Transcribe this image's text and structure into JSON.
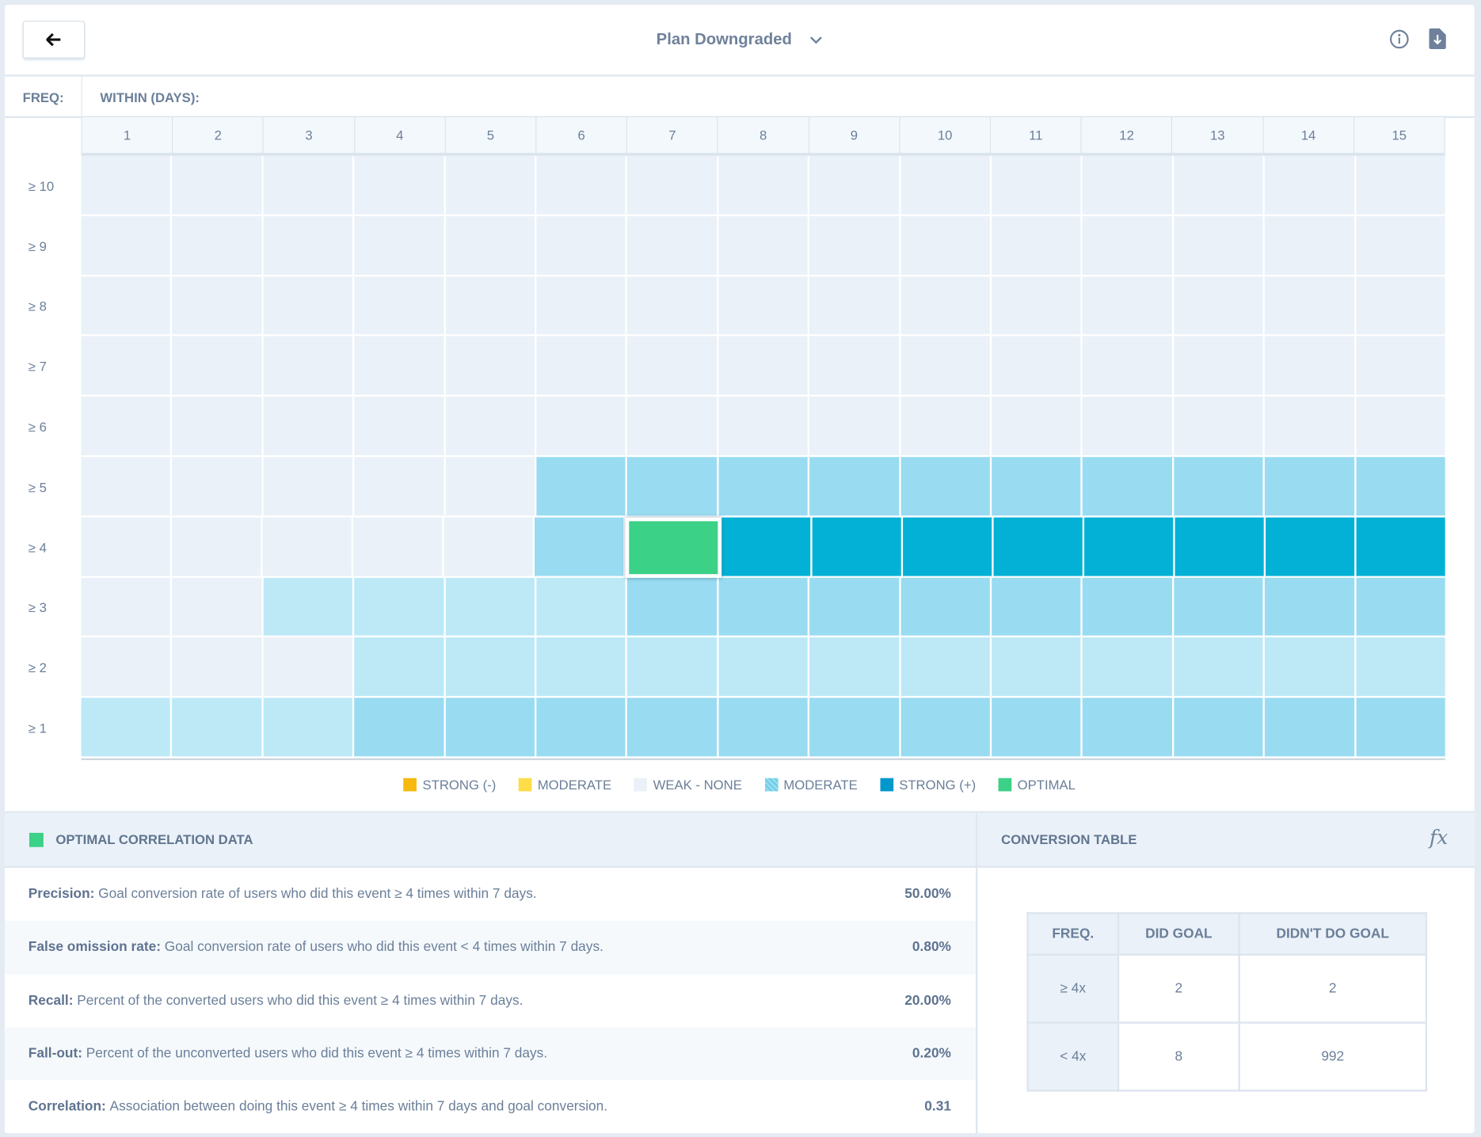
{
  "header": {
    "title": "Plan Downgraded",
    "back_icon": "arrow-left-icon",
    "info_icon": "info-icon",
    "download_icon": "download-file-icon"
  },
  "labels": {
    "freq": "FREQ:",
    "within": "WITHIN (DAYS):"
  },
  "colors": {
    "weak_none": "#eaf1f8",
    "light": "#bde9f7",
    "moderate": "#99dcf1",
    "strong": "#03b1d6",
    "optimal": "#3bd186",
    "strong_neg": "#f7b90f",
    "moderate_neg": "#fedd48"
  },
  "chart_data": {
    "type": "heatmap",
    "columns": [
      "1",
      "2",
      "3",
      "4",
      "5",
      "6",
      "7",
      "8",
      "9",
      "10",
      "11",
      "12",
      "13",
      "14",
      "15"
    ],
    "rows": [
      "≥ 10",
      "≥ 9",
      "≥ 8",
      "≥ 7",
      "≥ 6",
      "≥ 5",
      "≥ 4",
      "≥ 3",
      "≥ 2",
      "≥ 1"
    ],
    "levels": [
      [
        "weak_none",
        "weak_none",
        "weak_none",
        "weak_none",
        "weak_none",
        "weak_none",
        "weak_none",
        "weak_none",
        "weak_none",
        "weak_none",
        "weak_none",
        "weak_none",
        "weak_none",
        "weak_none",
        "weak_none"
      ],
      [
        "weak_none",
        "weak_none",
        "weak_none",
        "weak_none",
        "weak_none",
        "weak_none",
        "weak_none",
        "weak_none",
        "weak_none",
        "weak_none",
        "weak_none",
        "weak_none",
        "weak_none",
        "weak_none",
        "weak_none"
      ],
      [
        "weak_none",
        "weak_none",
        "weak_none",
        "weak_none",
        "weak_none",
        "weak_none",
        "weak_none",
        "weak_none",
        "weak_none",
        "weak_none",
        "weak_none",
        "weak_none",
        "weak_none",
        "weak_none",
        "weak_none"
      ],
      [
        "weak_none",
        "weak_none",
        "weak_none",
        "weak_none",
        "weak_none",
        "weak_none",
        "weak_none",
        "weak_none",
        "weak_none",
        "weak_none",
        "weak_none",
        "weak_none",
        "weak_none",
        "weak_none",
        "weak_none"
      ],
      [
        "weak_none",
        "weak_none",
        "weak_none",
        "weak_none",
        "weak_none",
        "weak_none",
        "weak_none",
        "weak_none",
        "weak_none",
        "weak_none",
        "weak_none",
        "weak_none",
        "weak_none",
        "weak_none",
        "weak_none"
      ],
      [
        "weak_none",
        "weak_none",
        "weak_none",
        "weak_none",
        "weak_none",
        "moderate",
        "moderate",
        "moderate",
        "moderate",
        "moderate",
        "moderate",
        "moderate",
        "moderate",
        "moderate",
        "moderate"
      ],
      [
        "weak_none",
        "weak_none",
        "weak_none",
        "weak_none",
        "weak_none",
        "moderate",
        "optimal",
        "strong",
        "strong",
        "strong",
        "strong",
        "strong",
        "strong",
        "strong",
        "strong"
      ],
      [
        "weak_none",
        "weak_none",
        "light",
        "light",
        "light",
        "light",
        "moderate",
        "moderate",
        "moderate",
        "moderate",
        "moderate",
        "moderate",
        "moderate",
        "moderate",
        "moderate"
      ],
      [
        "weak_none",
        "weak_none",
        "weak_none",
        "light",
        "light",
        "light",
        "light",
        "light",
        "light",
        "light",
        "light",
        "light",
        "light",
        "light",
        "light"
      ],
      [
        "light",
        "light",
        "light",
        "moderate",
        "moderate",
        "moderate",
        "moderate",
        "moderate",
        "moderate",
        "moderate",
        "moderate",
        "moderate",
        "moderate",
        "moderate",
        "moderate"
      ]
    ],
    "legend": [
      {
        "label": "STRONG (-)",
        "color": "#f7b90f"
      },
      {
        "label": "MODERATE",
        "color": "#fedd48"
      },
      {
        "label": "WEAK - NONE",
        "color": "#eaf1f8"
      },
      {
        "label": "MODERATE",
        "color": "#6fcde8"
      },
      {
        "label": "STRONG (+)",
        "color": "#0398cc"
      },
      {
        "label": "OPTIMAL",
        "color": "#3bd186"
      }
    ]
  },
  "optimal": {
    "title": "OPTIMAL CORRELATION DATA",
    "metrics": [
      {
        "label": "Precision:",
        "desc": "Goal conversion rate of users who did this event ≥ 4 times within 7 days.",
        "value": "50.00%"
      },
      {
        "label": "False omission rate:",
        "desc": "Goal conversion rate of users who did this event < 4 times within 7 days.",
        "value": "0.80%"
      },
      {
        "label": "Recall:",
        "desc": "Percent of the converted users who did this event ≥ 4 times within 7 days.",
        "value": "20.00%"
      },
      {
        "label": "Fall-out:",
        "desc": "Percent of the unconverted users who did this event ≥ 4 times within 7 days.",
        "value": "0.20%"
      },
      {
        "label": "Correlation:",
        "desc": "Association between doing this event ≥ 4 times within 7 days and goal conversion.",
        "value": "0.31"
      }
    ]
  },
  "conversion": {
    "title": "CONVERSION TABLE",
    "fx": "fx",
    "headers": [
      "FREQ.",
      "DID GOAL",
      "DIDN'T DO GOAL"
    ],
    "rows": [
      [
        "≥ 4x",
        "2",
        "2"
      ],
      [
        "< 4x",
        "8",
        "992"
      ]
    ]
  }
}
